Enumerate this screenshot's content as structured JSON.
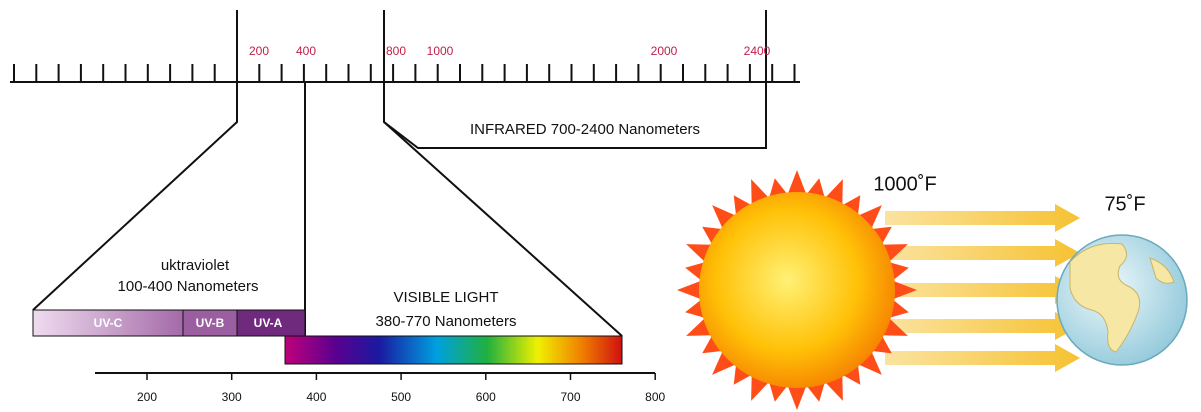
{
  "top_scale": {
    "labels": [
      "200",
      "400",
      "800",
      "1000",
      "2000",
      "2400"
    ]
  },
  "infrared": {
    "label": "INFRARED 700-2400 Nanometers"
  },
  "ultraviolet": {
    "title": "uktraviolet",
    "range": "100-400 Nanometers",
    "bands": [
      "UV-C",
      "UV-B",
      "UV-A"
    ]
  },
  "visible": {
    "title": "VISIBLE LIGHT",
    "range": "380-770 Nanometers"
  },
  "bottom_scale": {
    "labels": [
      "200",
      "300",
      "400",
      "500",
      "600",
      "700",
      "800"
    ]
  },
  "sun": {
    "temperature": "1000˚F"
  },
  "earth": {
    "temperature": "75˚F"
  }
}
